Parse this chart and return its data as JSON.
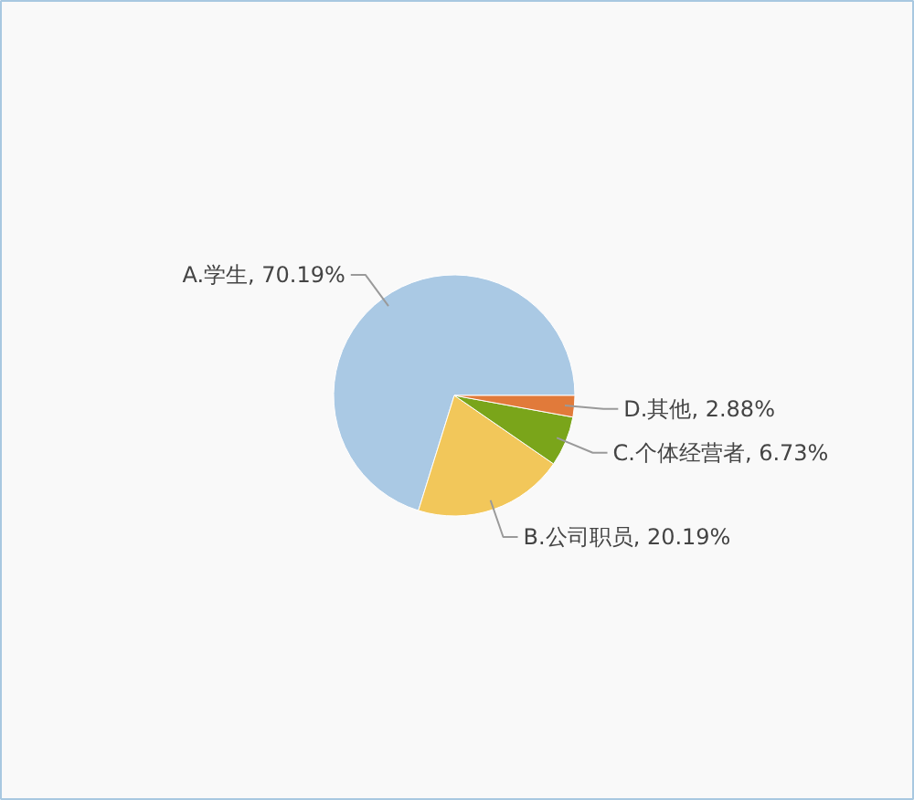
{
  "chart_data": {
    "type": "pie",
    "categories": [
      "A.学生",
      "B.公司职员",
      "C.个体经营者",
      "D.其他"
    ],
    "values": [
      70.19,
      20.19,
      6.73,
      2.88
    ],
    "colors": [
      "#aac9e4",
      "#f2c75a",
      "#7aa51a",
      "#e17a3a"
    ],
    "value_labels": [
      ", 70.19%",
      ", 20.19%",
      ", 6.73%",
      ", 2.88%"
    ]
  }
}
